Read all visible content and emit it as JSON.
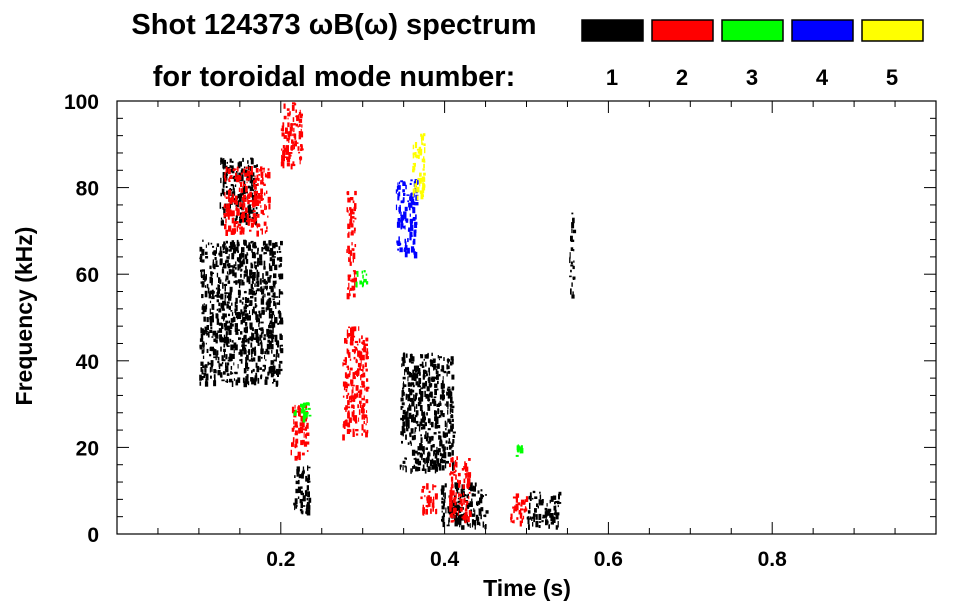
{
  "chart_data": {
    "type": "heatmap",
    "title_line1": "Shot 124373 ωB(ω) spectrum",
    "title_line2": "for toroidal mode number:",
    "xlabel": "Time (s)",
    "ylabel": "Frequency (kHz)",
    "xlim": [
      0.0,
      1.0
    ],
    "ylim": [
      0,
      100
    ],
    "x_ticks": [
      {
        "value": 0.2,
        "label": "0.2"
      },
      {
        "value": 0.4,
        "label": "0.4"
      },
      {
        "value": 0.6,
        "label": "0.6"
      },
      {
        "value": 0.8,
        "label": "0.8"
      }
    ],
    "y_ticks": [
      {
        "value": 0,
        "label": "0"
      },
      {
        "value": 20,
        "label": "20"
      },
      {
        "value": 40,
        "label": "40"
      },
      {
        "value": 60,
        "label": "60"
      },
      {
        "value": 80,
        "label": "80"
      },
      {
        "value": 100,
        "label": "100"
      }
    ],
    "legend_position": "top-right",
    "legend": [
      {
        "label": "1",
        "color": "#000000"
      },
      {
        "label": "2",
        "color": "#ff0000"
      },
      {
        "label": "3",
        "color": "#00ff00"
      },
      {
        "label": "4",
        "color": "#0000ff"
      },
      {
        "label": "5",
        "color": "#ffff00"
      }
    ],
    "regions": [
      {
        "mode": "1",
        "t": [
          0.1,
          0.2
        ],
        "f": [
          35,
          68
        ]
      },
      {
        "mode": "1",
        "t": [
          0.125,
          0.17
        ],
        "f": [
          72,
          87
        ]
      },
      {
        "mode": "1",
        "t": [
          0.215,
          0.235
        ],
        "f": [
          5,
          16
        ]
      },
      {
        "mode": "1",
        "t": [
          0.345,
          0.41
        ],
        "f": [
          15,
          42
        ]
      },
      {
        "mode": "1",
        "t": [
          0.395,
          0.45
        ],
        "f": [
          2,
          12
        ]
      },
      {
        "mode": "1",
        "t": [
          0.5,
          0.54
        ],
        "f": [
          2,
          10
        ]
      },
      {
        "mode": "1",
        "t": [
          0.552,
          0.557
        ],
        "f": [
          55,
          75
        ]
      },
      {
        "mode": "2",
        "t": [
          0.13,
          0.185
        ],
        "f": [
          70,
          85
        ]
      },
      {
        "mode": "2",
        "t": [
          0.2,
          0.225
        ],
        "f": [
          85,
          100
        ]
      },
      {
        "mode": "2",
        "t": [
          0.212,
          0.232
        ],
        "f": [
          18,
          30
        ]
      },
      {
        "mode": "2",
        "t": [
          0.275,
          0.305
        ],
        "f": [
          23,
          48
        ]
      },
      {
        "mode": "2",
        "t": [
          0.28,
          0.29
        ],
        "f": [
          55,
          80
        ]
      },
      {
        "mode": "2",
        "t": [
          0.37,
          0.39
        ],
        "f": [
          5,
          12
        ]
      },
      {
        "mode": "2",
        "t": [
          0.405,
          0.43
        ],
        "f": [
          3,
          18
        ]
      },
      {
        "mode": "2",
        "t": [
          0.48,
          0.5
        ],
        "f": [
          3,
          10
        ]
      },
      {
        "mode": "3",
        "t": [
          0.215,
          0.235
        ],
        "f": [
          27,
          31
        ]
      },
      {
        "mode": "3",
        "t": [
          0.29,
          0.305
        ],
        "f": [
          58,
          61
        ]
      },
      {
        "mode": "3",
        "t": [
          0.485,
          0.495
        ],
        "f": [
          18,
          21
        ]
      },
      {
        "mode": "4",
        "t": [
          0.34,
          0.365
        ],
        "f": [
          65,
          82
        ]
      },
      {
        "mode": "5",
        "t": [
          0.36,
          0.375
        ],
        "f": [
          78,
          93
        ]
      }
    ]
  }
}
